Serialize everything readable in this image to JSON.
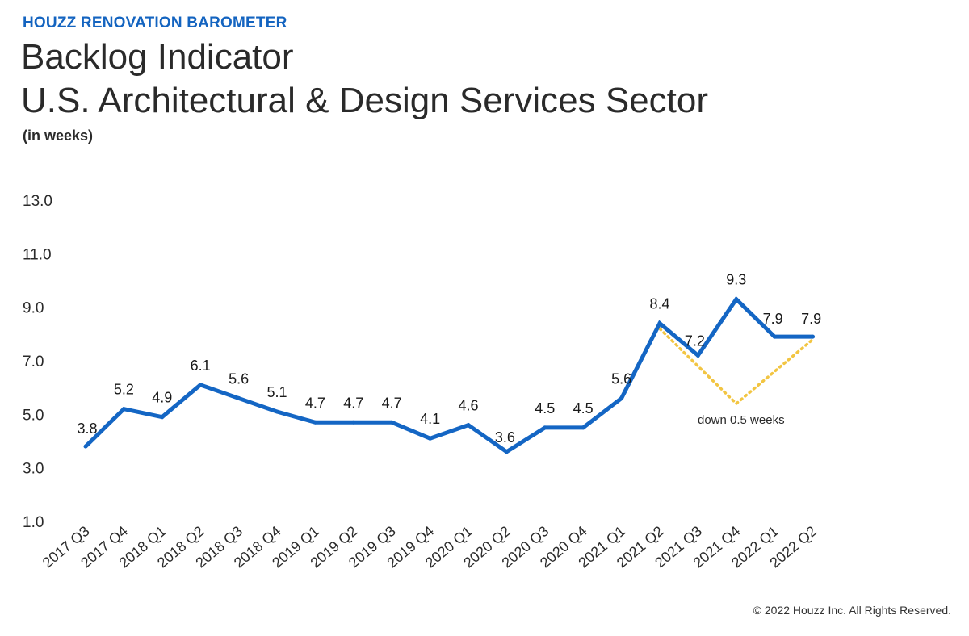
{
  "header": {
    "kicker": "HOUZZ RENOVATION BAROMETER",
    "title_line1": "Backlog Indicator",
    "title_line2": "U.S. Architectural & Design Services Sector",
    "subtitle": "(in weeks)"
  },
  "footer": {
    "copyright": "© 2022 Houzz Inc. All Rights Reserved."
  },
  "colors": {
    "brand_blue": "#1464c0",
    "line_blue": "#1466c4",
    "annotation_yellow": "#f2c542"
  },
  "chart_data": {
    "type": "line",
    "categories": [
      "2017 Q3",
      "2017 Q4",
      "2018 Q1",
      "2018 Q2",
      "2018 Q3",
      "2018 Q4",
      "2019 Q1",
      "2019 Q2",
      "2019 Q3",
      "2019 Q4",
      "2020 Q1",
      "2020 Q2",
      "2020 Q3",
      "2020 Q4",
      "2021 Q1",
      "2021 Q2",
      "2021 Q3",
      "2021 Q4",
      "2022 Q1",
      "2022 Q2"
    ],
    "series": [
      {
        "values": [
          3.8,
          5.2,
          4.9,
          6.1,
          5.6,
          5.1,
          4.7,
          4.7,
          4.7,
          4.1,
          4.6,
          3.6,
          4.5,
          4.5,
          5.6,
          8.4,
          7.2,
          9.3,
          7.9,
          7.9
        ],
        "labels": [
          "3.8",
          "5.2",
          "4.9",
          "6.1",
          "5.6",
          "5.1",
          "4.7",
          "4.7",
          "4.7",
          "4.1",
          "4.6",
          "3.6",
          "4.5",
          "4.5",
          "5.6",
          "8.4",
          "7.2",
          "9.3",
          "7.9",
          "7.9"
        ]
      }
    ],
    "annotation": {
      "text": "down 0.5 weeks",
      "path_categories": [
        "2021 Q2",
        "2021 Q4",
        "2022 Q2"
      ],
      "path_values": [
        8.2,
        5.4,
        7.8
      ],
      "style": "dotted"
    },
    "yticks": [
      "13.0",
      "11.0",
      "9.0",
      "7.0",
      "5.0",
      "3.0",
      "1.0"
    ],
    "ylim": [
      1,
      13
    ],
    "grid": false,
    "legend": "none"
  }
}
